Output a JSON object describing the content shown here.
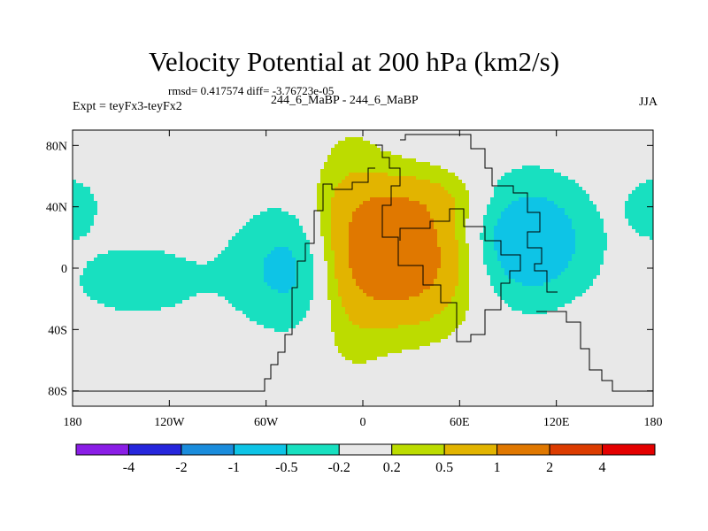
{
  "chart_data": {
    "type": "heatmap",
    "title": "Velocity Potential at 200 hPa (km2/s)",
    "stats": "rmsd= 0.417574 diff= -3.76723e-05",
    "left_label": "Expt = teyFx3-teyFx2",
    "center_label": "244_6_MaBP - 244_6_MaBP",
    "right_label": "JJA",
    "xlim": [
      -180,
      180
    ],
    "ylim": [
      -90,
      90
    ],
    "x_ticks": [
      {
        "value": -180,
        "label": "180"
      },
      {
        "value": -120,
        "label": "120W"
      },
      {
        "value": -60,
        "label": "60W"
      },
      {
        "value": 0,
        "label": "0"
      },
      {
        "value": 60,
        "label": "60E"
      },
      {
        "value": 120,
        "label": "120E"
      },
      {
        "value": 180,
        "label": "180"
      }
    ],
    "y_ticks": [
      {
        "value": 80,
        "label": "80N"
      },
      {
        "value": 40,
        "label": "40N"
      },
      {
        "value": 0,
        "label": "0"
      },
      {
        "value": -40,
        "label": "40S"
      },
      {
        "value": -80,
        "label": "80S"
      }
    ],
    "color_levels": [
      "-4",
      "-2",
      "-1",
      "-0.5",
      "-0.2",
      "0.2",
      "0.5",
      "1",
      "2",
      "4"
    ],
    "colors": [
      "#8a1ee6",
      "#2626dc",
      "#1a8cdc",
      "#0ec4e6",
      "#18e0c0",
      "#e8e8e8",
      "#bcdc00",
      "#e2b400",
      "#e07800",
      "#dc3c00",
      "#e40000"
    ],
    "centers": [
      {
        "lon": 25,
        "lat": 8,
        "amp": 1.55,
        "slon": 30,
        "slat": 30
      },
      {
        "lon": -8,
        "lat": 12,
        "amp": 0.55,
        "slon": 16,
        "slat": 48
      },
      {
        "lon": 38,
        "lat": 45,
        "amp": 0.3,
        "slon": 30,
        "slat": 12
      },
      {
        "lon": 100,
        "lat": 18,
        "amp": -0.95,
        "slon": 28,
        "slat": 28
      },
      {
        "lon": -40,
        "lat": 0,
        "amp": -0.7,
        "slon": 28,
        "slat": 28
      },
      {
        "lon": -140,
        "lat": -8,
        "amp": -0.38,
        "slon": 30,
        "slat": 18
      },
      {
        "lon": -180,
        "lat": 40,
        "amp": -0.4,
        "slon": 12,
        "slat": 14
      }
    ]
  }
}
